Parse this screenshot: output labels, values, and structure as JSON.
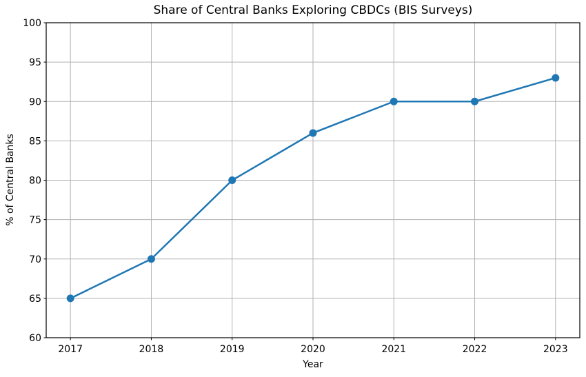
{
  "chart_data": {
    "type": "line",
    "title": "Share of Central Banks Exploring CBDCs (BIS Surveys)",
    "xlabel": "Year",
    "ylabel": "% of Central Banks",
    "categories": [
      2017,
      2018,
      2019,
      2020,
      2021,
      2022,
      2023
    ],
    "values": [
      65,
      70,
      80,
      86,
      90,
      90,
      93
    ],
    "xlim": [
      2016.7,
      2023.3
    ],
    "ylim": [
      60,
      100
    ],
    "yticks": [
      60,
      65,
      70,
      75,
      80,
      85,
      90,
      95,
      100
    ],
    "grid": true,
    "legend_position": "none",
    "line_color": "#1f77b4",
    "marker": "circle",
    "marker_color": "#1f77b4",
    "grid_color": "#b2b2b2",
    "spine_color": "#000000",
    "text_color": "#000000",
    "background_color": "#ffffff"
  }
}
